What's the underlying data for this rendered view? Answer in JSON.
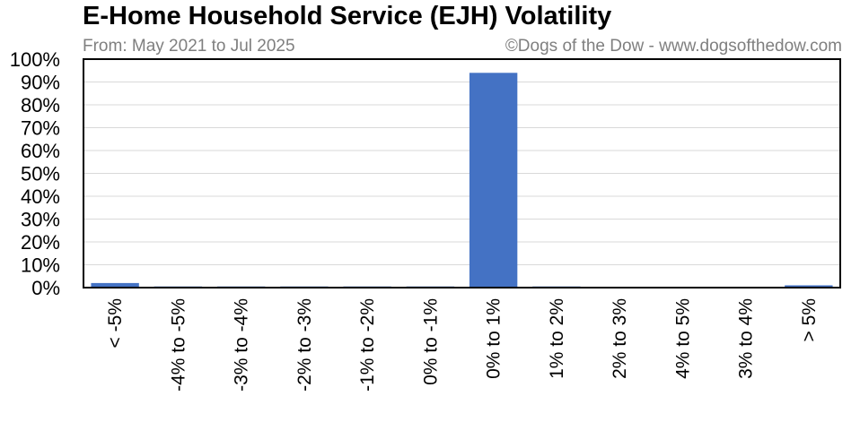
{
  "header": {
    "title": "E-Home Household Service (EJH) Volatility",
    "subtitle": "From: May 2021 to Jul 2025",
    "credit": "©Dogs of the Dow - www.dogsofthedow.com"
  },
  "chart_data": {
    "type": "bar",
    "categories": [
      "< -5%",
      "-4% to -5%",
      "-3% to -4%",
      "-2% to -3%",
      "-1% to -2%",
      "0% to -1%",
      "0% to 1%",
      "1% to 2%",
      "2% to 3%",
      "4% to 5%",
      "3% to 4%",
      "> 5%"
    ],
    "values": [
      2,
      0.5,
      0.5,
      0.5,
      0.5,
      0.5,
      94,
      0.5,
      0,
      0,
      0,
      1
    ],
    "ylim": [
      0,
      100
    ],
    "yticks": [
      "0%",
      "10%",
      "20%",
      "30%",
      "40%",
      "50%",
      "60%",
      "70%",
      "80%",
      "90%",
      "100%"
    ],
    "grid": true,
    "bar_color": "#4472c4",
    "grid_color": "#d9d9d9"
  }
}
